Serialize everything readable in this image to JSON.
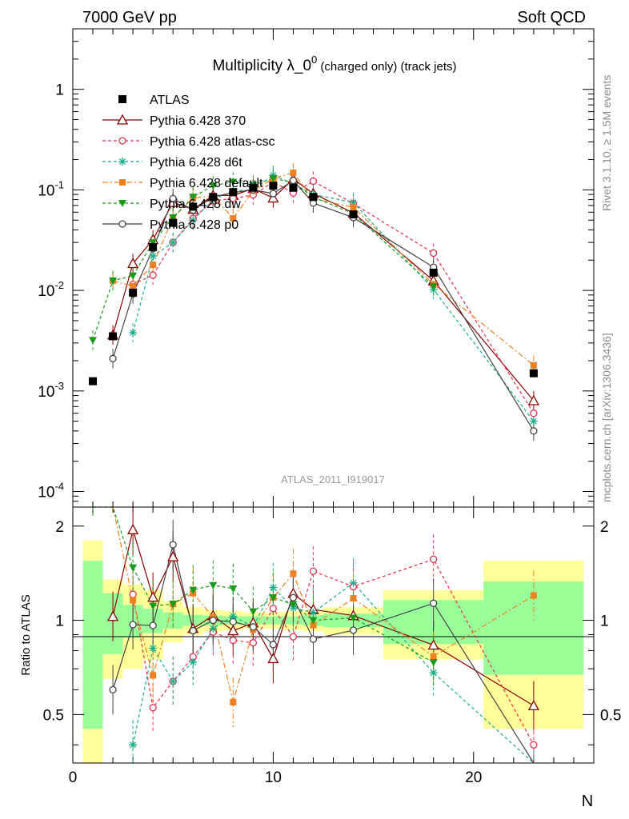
{
  "header": {
    "left": "7000 GeV pp",
    "right": "Soft QCD"
  },
  "side_labels": {
    "top": "Rivet 3.1.10, ≥ 1.5M events",
    "bottom": "mcplots.cern.ch [arXiv:1306.3436]"
  },
  "chart_data": {
    "type": "scatter",
    "title": {
      "main": "Multiplicity λ_0",
      "sup": "0",
      "sub": " (charged only) (track jets)"
    },
    "analysis_id": "ATLAS_2011_I919017",
    "xlabel": "N",
    "ylabel_ratio": "Ratio to ATLAS",
    "xlim": [
      0,
      26
    ],
    "ylim": [
      7e-05,
      4
    ],
    "ylim_ratio": [
      0.35,
      2.3
    ],
    "yscale": "log",
    "x_ticks": [
      "0",
      "10",
      "20"
    ],
    "y_ticks": [
      "10^-4",
      "10^-3",
      "10^-2",
      "10^-1",
      "1"
    ],
    "ratio_ticks": [
      "0.5",
      "1",
      "2"
    ],
    "legend_position": "top-left",
    "x": [
      1,
      2,
      3,
      4,
      5,
      6,
      7,
      8,
      9,
      10,
      11,
      12,
      14,
      18,
      23
    ],
    "data": {
      "name": "ATLAS",
      "values": [
        0.00125,
        0.0035,
        0.0095,
        0.027,
        0.047,
        0.068,
        0.085,
        0.095,
        0.105,
        0.11,
        0.105,
        0.085,
        0.057,
        0.015,
        0.0015
      ],
      "band_edges": [
        0.5,
        1.5,
        2.5,
        3.5,
        4.5,
        5.5,
        6.5,
        7.5,
        8.5,
        9.5,
        10.5,
        11.5,
        12.5,
        15.5,
        20.5,
        25.5
      ],
      "band_stat": [
        0.55,
        0.22,
        0.12,
        0.09,
        0.06,
        0.04,
        0.035,
        0.03,
        0.03,
        0.03,
        0.03,
        0.04,
        0.05,
        0.16,
        0.33
      ],
      "band_total": [
        0.8,
        0.35,
        0.3,
        0.25,
        0.15,
        0.1,
        0.08,
        0.07,
        0.06,
        0.06,
        0.07,
        0.08,
        0.1,
        0.25,
        0.55
      ]
    },
    "series": [
      {
        "name": "Pythia 6.428 370",
        "color": "#8b0000",
        "dash": "",
        "marker": "triangle-open",
        "values": [
          null,
          0.0036,
          0.0185,
          0.032,
          0.075,
          0.064,
          0.088,
          0.088,
          0.103,
          0.083,
          0.128,
          0.092,
          0.059,
          0.0125,
          0.0008
        ]
      },
      {
        "name": "Pythia 6.428 atlas-csc",
        "color": "#e8304e",
        "dash": "4,3",
        "marker": "circle-open",
        "values": [
          null,
          null,
          0.0115,
          0.0142,
          0.03,
          0.052,
          0.078,
          0.082,
          0.089,
          0.12,
          0.093,
          0.122,
          0.073,
          0.0235,
          0.0006
        ]
      },
      {
        "name": "Pythia 6.428 d6t",
        "color": "#1aaf8a",
        "dash": "4,3",
        "marker": "star",
        "values": [
          null,
          null,
          0.0038,
          0.022,
          0.03,
          0.05,
          0.08,
          0.098,
          0.1,
          0.14,
          0.115,
          0.09,
          0.075,
          0.0102,
          0.0005
        ]
      },
      {
        "name": "Pythia 6.428 default",
        "color": "#f08020",
        "dash": "7,3,2,3",
        "marker": "square",
        "values": [
          null,
          0.0125,
          0.011,
          0.018,
          0.053,
          0.083,
          0.087,
          0.052,
          0.098,
          0.13,
          0.148,
          0.082,
          0.067,
          0.0115,
          0.0018
        ]
      },
      {
        "name": "Pythia 6.428 dw",
        "color": "#1a9a1a",
        "dash": "4,3",
        "marker": "triangle-down",
        "values": [
          0.0032,
          0.0125,
          0.014,
          0.03,
          0.053,
          0.085,
          0.11,
          0.12,
          0.112,
          0.13,
          0.118,
          0.085,
          0.058,
          0.011,
          null
        ]
      },
      {
        "name": "Pythia 6.428 p0",
        "color": "#444444",
        "dash": "",
        "marker": "circle-open",
        "values": [
          null,
          0.0021,
          0.0092,
          0.026,
          0.082,
          0.063,
          0.085,
          0.094,
          0.1,
          0.092,
          0.124,
          0.074,
          0.053,
          0.017,
          0.0004
        ]
      }
    ]
  }
}
